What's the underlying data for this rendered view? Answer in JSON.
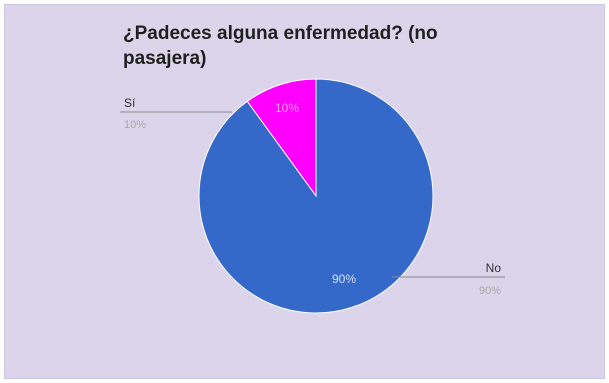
{
  "chart_data": {
    "type": "pie",
    "title": "¿Padeces alguna enfermedad? (no pasajera)",
    "slices": [
      {
        "label": "No",
        "value": 90,
        "percent_label": "90%",
        "color": "#3569c9"
      },
      {
        "label": "Sí",
        "value": 10,
        "percent_label": "10%",
        "color": "#ff00ff"
      }
    ],
    "legend": "callout labels outside slices"
  }
}
